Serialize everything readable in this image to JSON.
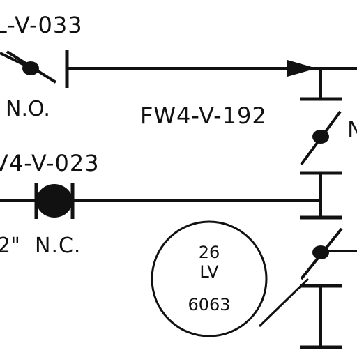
{
  "labels": {
    "valve_top_tag": "L-V-033",
    "valve_top_state": "N.O.",
    "valve_192_tag": "FW4-V-192",
    "valve_192_state_partial": "N",
    "valve_023_tag": "V4-V-023",
    "valve_023_size": "2\"",
    "valve_023_state": "N.C."
  },
  "instrument": {
    "number": "26",
    "function": "LV",
    "tag": "6063"
  },
  "colors": {
    "line": "#111111",
    "background": "#ffffff"
  }
}
